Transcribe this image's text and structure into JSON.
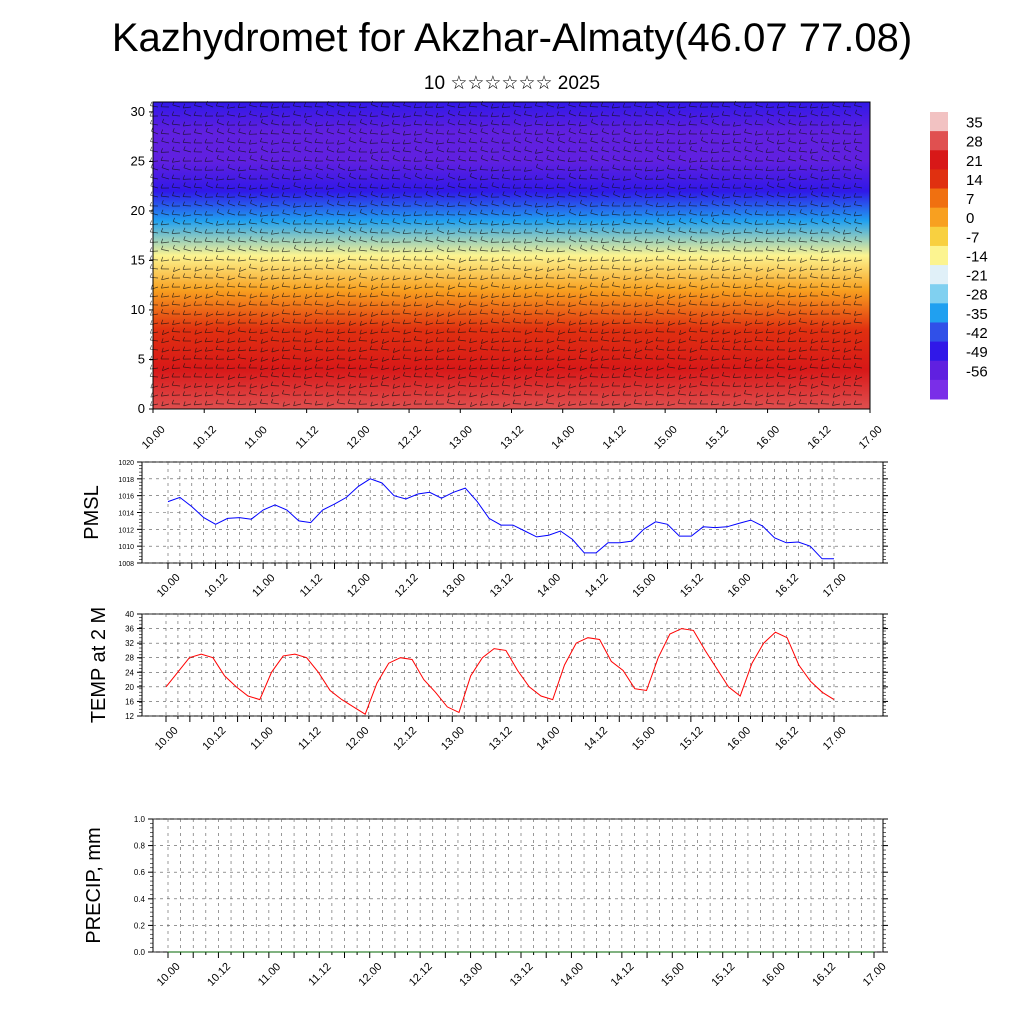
{
  "header": {
    "title": "Kazhydromet for Akzhar-Almaty(46.07 77.08)",
    "subtitle": "10 ☆☆☆☆☆☆ 2025"
  },
  "colors": {
    "pmsl_line": "#0000ff",
    "temp_line": "#ff0000",
    "precip_line": "#006400",
    "axis": "#000000",
    "grid": "#555555"
  },
  "chart_data": [
    {
      "type": "heatmap",
      "title": "",
      "xlabel": "",
      "ylabel": "",
      "x_tick_labels": [
        "10.00",
        "10.12",
        "11.00",
        "11.12",
        "12.00",
        "12.12",
        "13.00",
        "13.12",
        "14.00",
        "14.12",
        "15.00",
        "15.12",
        "16.00",
        "16.12",
        "17.00"
      ],
      "y_tick_labels": [
        "0",
        "5",
        "10",
        "15",
        "20",
        "25",
        "30"
      ],
      "ylim": [
        0,
        31
      ],
      "overlay": "wind barbs",
      "colorbar": {
        "labels": [
          "35",
          "28",
          "21",
          "14",
          "7",
          "0",
          "-7",
          "-14",
          "-21",
          "-28",
          "-35",
          "-42",
          "-49",
          "-56"
        ],
        "colors": [
          "#f2c2c2",
          "#e05050",
          "#d81818",
          "#e03010",
          "#f07010",
          "#f8a020",
          "#f8d040",
          "#fcf490",
          "#e0f0f8",
          "#80d0f0",
          "#20a0f0",
          "#3050e8",
          "#3018e8",
          "#6020e0",
          "#7a2ee8"
        ]
      },
      "z_profile_approx": [
        {
          "level": 0,
          "value": 30
        },
        {
          "level": 4,
          "value": 24
        },
        {
          "level": 8,
          "value": 14
        },
        {
          "level": 12,
          "value": 2
        },
        {
          "level": 15.5,
          "value": -10
        },
        {
          "level": 19,
          "value": -30
        },
        {
          "level": 22,
          "value": -46
        },
        {
          "level": 25,
          "value": -56
        },
        {
          "level": 28,
          "value": -52
        },
        {
          "level": 31,
          "value": -48
        }
      ]
    },
    {
      "type": "line",
      "ylabel": "PMSL",
      "ylim": [
        1008,
        1020
      ],
      "y_tick_labels": [
        "1008",
        "1010",
        "1012",
        "1014",
        "1016",
        "1018",
        "1020"
      ],
      "x_tick_labels": [
        "10.00",
        "10.12",
        "11.00",
        "11.12",
        "12.00",
        "12.12",
        "13.00",
        "13.12",
        "14.00",
        "14.12",
        "15.00",
        "15.12",
        "16.00",
        "16.12",
        "17.00"
      ],
      "series": [
        {
          "values": [
            1015.3,
            1015.8,
            1014.7,
            1013.4,
            1012.6,
            1013.3,
            1013.4,
            1013.2,
            1014.3,
            1014.9,
            1014.3,
            1013.0,
            1012.8,
            1014.3,
            1015.0,
            1015.8,
            1017.1,
            1018.0,
            1017.5,
            1016.0,
            1015.6,
            1016.2,
            1016.4,
            1015.7,
            1016.4,
            1016.9,
            1015.3,
            1013.3,
            1012.5,
            1012.5,
            1011.8,
            1011.1,
            1011.3,
            1011.8,
            1010.8,
            1009.2,
            1009.2,
            1010.4,
            1010.4,
            1010.6,
            1012.0,
            1012.9,
            1012.6,
            1011.2,
            1011.2,
            1012.3,
            1012.2,
            1012.3,
            1012.7,
            1013.1,
            1012.4,
            1011.0,
            1010.4,
            1010.5,
            1010.0,
            1008.5,
            1008.5
          ]
        }
      ]
    },
    {
      "type": "line",
      "ylabel": "TEMP at 2 M",
      "ylim": [
        12,
        40
      ],
      "y_tick_labels": [
        "12",
        "16",
        "20",
        "24",
        "28",
        "32",
        "36",
        "40"
      ],
      "x_tick_labels": [
        "10.00",
        "10.12",
        "11.00",
        "11.12",
        "12.00",
        "12.12",
        "13.00",
        "13.12",
        "14.00",
        "14.12",
        "15.00",
        "15.12",
        "16.00",
        "16.12",
        "17.00"
      ],
      "series": [
        {
          "values": [
            20,
            24,
            28,
            29,
            28,
            23,
            20,
            17.5,
            16.5,
            24,
            28.5,
            29,
            28,
            24,
            19,
            16.5,
            14.5,
            12.5,
            21,
            26.5,
            28,
            27.5,
            22,
            18.5,
            14.5,
            13,
            23,
            28,
            30.5,
            30,
            24.5,
            20,
            17.5,
            16.5,
            26,
            32,
            33.5,
            33,
            27,
            24.5,
            19.5,
            19,
            28,
            34.5,
            36,
            35.5,
            30,
            25,
            20,
            17.5,
            26.5,
            32,
            35,
            33.5,
            26,
            21.5,
            18.5,
            16.5
          ]
        }
      ]
    },
    {
      "type": "line",
      "ylabel": "PRECIP, mm",
      "ylim": [
        0,
        1
      ],
      "y_tick_labels": [
        "0.0",
        "0.2",
        "0.4",
        "0.6",
        "0.8",
        "1.0"
      ],
      "x_tick_labels": [
        "10.00",
        "10.12",
        "11.00",
        "11.12",
        "12.00",
        "12.12",
        "13.00",
        "13.12",
        "14.00",
        "14.12",
        "15.00",
        "15.12",
        "16.00",
        "16.12",
        "17.00"
      ],
      "series": [
        {
          "values": [
            0,
            0
          ]
        }
      ]
    }
  ]
}
